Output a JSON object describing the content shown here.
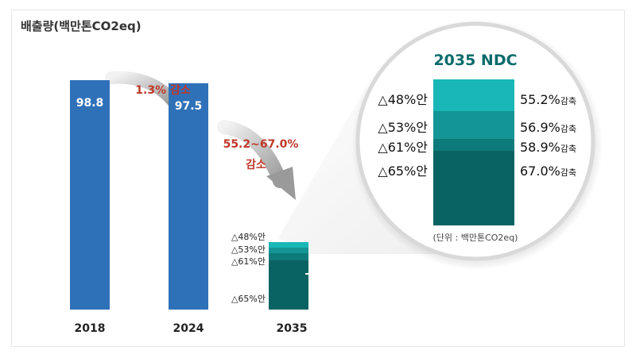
{
  "chart_data": {
    "type": "bar",
    "title": "배출량(백만톤CO2eq)",
    "categories": [
      "2018",
      "2024",
      "2035"
    ],
    "values": [
      98.8,
      97.5,
      null
    ],
    "value_labels": [
      "98.8",
      "97.5",
      ""
    ],
    "ylim": [
      0,
      98.8
    ],
    "colors": {
      "bar": "#2f71b8",
      "arrow_text": "#c0392b"
    },
    "annotations": {
      "reduction_2024": "1.3% 감소",
      "reduction_2035_line1": "55.2~67.0%",
      "reduction_2035_line2": "감소"
    },
    "ndc_2035": {
      "title": "2035 NDC",
      "title_color": "#0b6b6b",
      "unit_note": "(단위 : 백만톤CO2eq)",
      "tiers": [
        {
          "label": "△48%안",
          "reduction": "55.2%",
          "suffix": "감축",
          "color": "#19b7b7"
        },
        {
          "label": "△53%안",
          "reduction": "56.9%",
          "suffix": "감축",
          "color": "#139595"
        },
        {
          "label": "△61%안",
          "reduction": "58.9%",
          "suffix": "감축",
          "color": "#0e7b7b"
        },
        {
          "label": "△65%안",
          "reduction": "67.0%",
          "suffix": "감축",
          "color": "#0a6363"
        }
      ]
    }
  }
}
